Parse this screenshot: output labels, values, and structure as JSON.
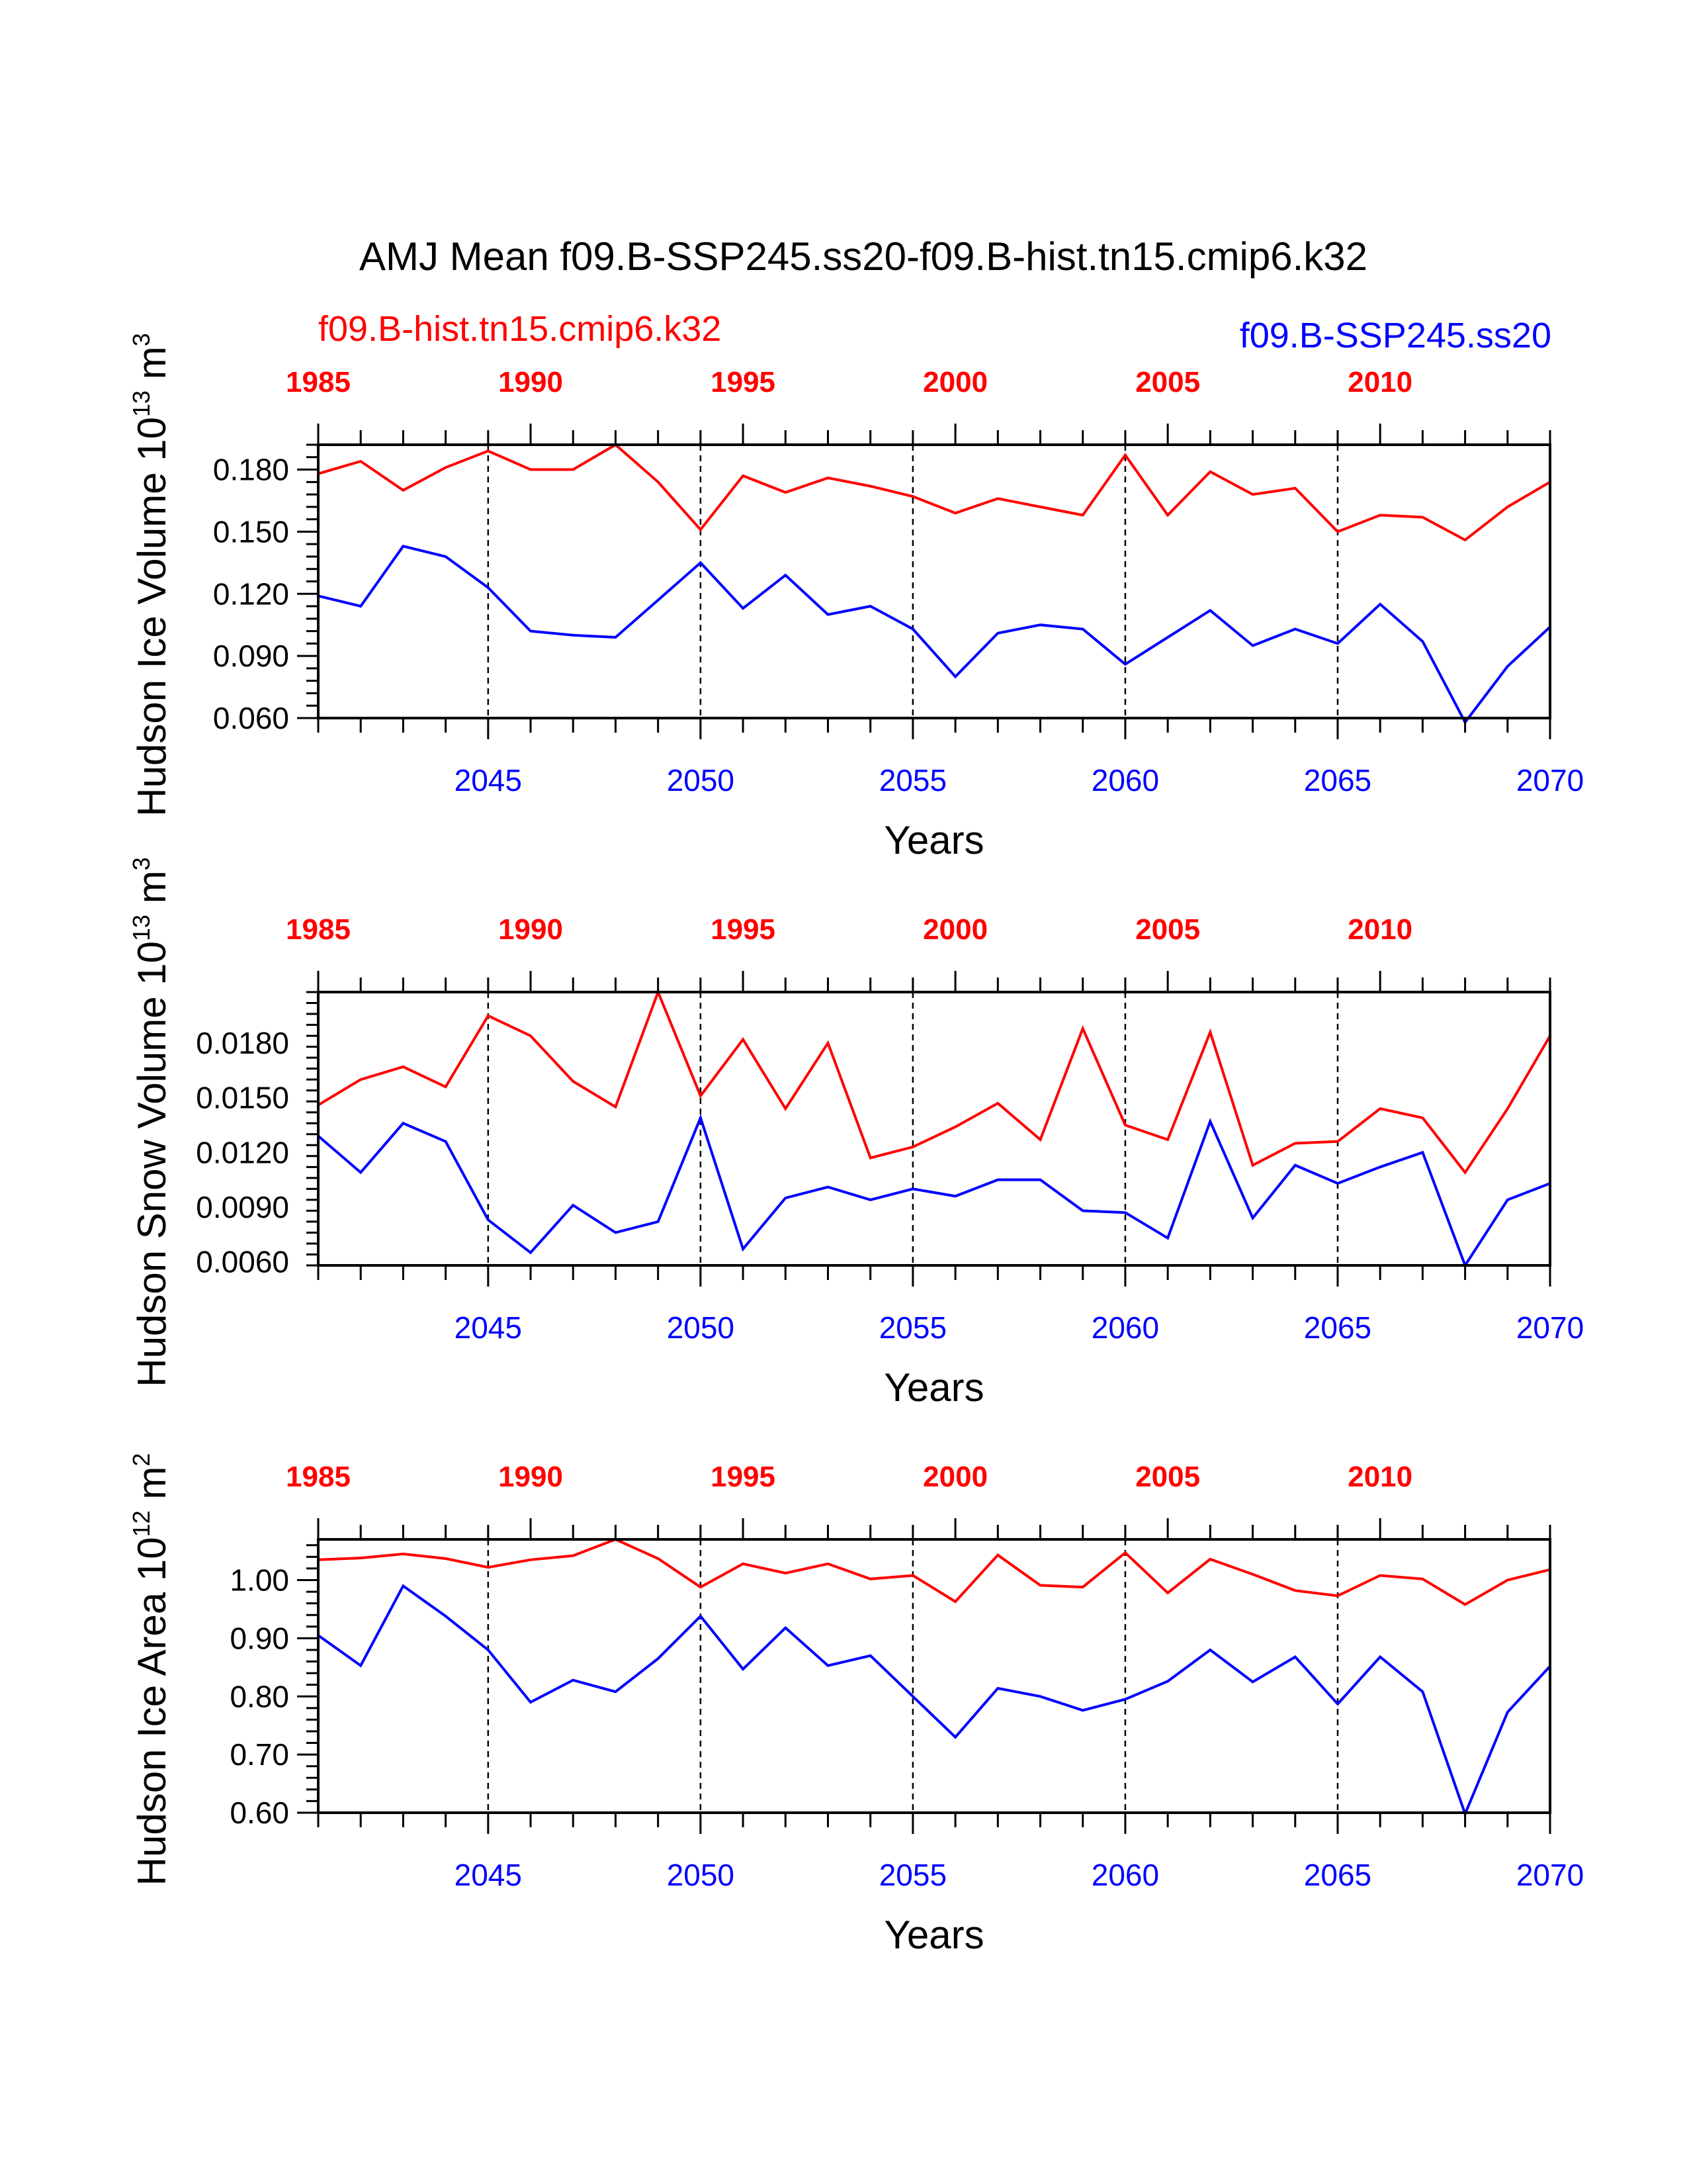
{
  "title": "AMJ Mean f09.B-SSP245.ss20-f09.B-hist.tn15.cmip6.k32",
  "colors": {
    "hist": "#ff0000",
    "ssp": "#0000ff",
    "axis": "#000000"
  },
  "legend": {
    "hist": "f09.B-hist.tn15.cmip6.k32",
    "ssp": "f09.B-SSP245.ss20"
  },
  "chart_data": [
    {
      "type": "line",
      "ylabel": {
        "main": "Hudson Ice Volume 10",
        "exp": "13",
        "unit": " m",
        "unit_exp": "3"
      },
      "xlabel": "Years",
      "xlim": [
        2041,
        2070
      ],
      "ylim": [
        0.06,
        0.192
      ],
      "yticks": [
        "0.060",
        "0.090",
        "0.120",
        "0.150",
        "0.180"
      ],
      "x_bottom": [
        2041,
        2042,
        2043,
        2044,
        2045,
        2046,
        2047,
        2048,
        2049,
        2050,
        2051,
        2052,
        2053,
        2054,
        2055,
        2056,
        2057,
        2058,
        2059,
        2060,
        2061,
        2062,
        2063,
        2064,
        2065,
        2066,
        2067,
        2068,
        2069,
        2070
      ],
      "bottom_ticks": [
        "2045",
        "2050",
        "2055",
        "2060",
        "2065",
        "2070"
      ],
      "top_ticks": [
        "1985",
        "1990",
        "1995",
        "2000",
        "2005",
        "2010"
      ],
      "series": [
        {
          "name": "f09.B-hist.tn15.cmip6.k32",
          "color": "#ff0000",
          "values": [
            0.178,
            0.184,
            0.17,
            0.181,
            0.189,
            0.18,
            0.18,
            0.192,
            0.174,
            0.151,
            0.177,
            0.169,
            0.176,
            0.172,
            0.167,
            0.159,
            0.166,
            0.162,
            0.158,
            0.187,
            0.158,
            0.179,
            0.168,
            0.171,
            0.15,
            0.158,
            0.157,
            0.146,
            0.162,
            0.174
          ]
        },
        {
          "name": "f09.B-SSP245.ss20",
          "color": "#0000ff",
          "values": [
            0.119,
            0.114,
            0.143,
            0.138,
            0.123,
            0.102,
            0.1,
            0.099,
            0.117,
            0.135,
            0.113,
            0.129,
            0.11,
            0.114,
            0.103,
            0.08,
            0.101,
            0.105,
            0.103,
            0.086,
            0.099,
            0.112,
            0.095,
            0.103,
            0.096,
            0.115,
            0.097,
            0.058,
            0.085,
            0.104
          ]
        }
      ]
    },
    {
      "type": "line",
      "ylabel": {
        "main": "Hudson Snow Volume 10",
        "exp": "13",
        "unit": " m",
        "unit_exp": "3"
      },
      "xlabel": "Years",
      "xlim": [
        2041,
        2070
      ],
      "ylim": [
        0.0058,
        0.0208
      ],
      "yticks": [
        "0.0060",
        "0.0090",
        "0.0120",
        "0.0150",
        "0.0180"
      ],
      "x_bottom": [
        2041,
        2042,
        2043,
        2044,
        2045,
        2046,
        2047,
        2048,
        2049,
        2050,
        2051,
        2052,
        2053,
        2054,
        2055,
        2056,
        2057,
        2058,
        2059,
        2060,
        2061,
        2062,
        2063,
        2064,
        2065,
        2066,
        2067,
        2068,
        2069,
        2070
      ],
      "bottom_ticks": [
        "2045",
        "2050",
        "2055",
        "2060",
        "2065",
        "2070"
      ],
      "top_ticks": [
        "1985",
        "1990",
        "1995",
        "2000",
        "2005",
        "2010"
      ],
      "series": [
        {
          "name": "f09.B-hist.tn15.cmip6.k32",
          "color": "#ff0000",
          "values": [
            0.0146,
            0.016,
            0.0167,
            0.0156,
            0.0195,
            0.0184,
            0.0159,
            0.0145,
            0.0208,
            0.0151,
            0.0182,
            0.0144,
            0.018,
            0.0117,
            0.0123,
            0.0134,
            0.0147,
            0.0127,
            0.0188,
            0.0135,
            0.0127,
            0.0186,
            0.0113,
            0.0125,
            0.0126,
            0.0144,
            0.0139,
            0.0109,
            0.0144,
            0.0184
          ]
        },
        {
          "name": "f09.B-SSP245.ss20",
          "color": "#0000ff",
          "values": [
            0.0129,
            0.0109,
            0.0136,
            0.0126,
            0.0083,
            0.0065,
            0.0091,
            0.0076,
            0.0082,
            0.0139,
            0.0067,
            0.0095,
            0.0101,
            0.0094,
            0.01,
            0.0096,
            0.0105,
            0.0105,
            0.0088,
            0.0087,
            0.0073,
            0.0137,
            0.0084,
            0.0113,
            0.0103,
            0.0112,
            0.012,
            0.0058,
            0.0094,
            0.0103
          ]
        }
      ]
    },
    {
      "type": "line",
      "ylabel": {
        "main": "Hudson Ice Area 10",
        "exp": "12",
        "unit": " m",
        "unit_exp": "2"
      },
      "xlabel": "Years",
      "xlim": [
        2041,
        2070
      ],
      "ylim": [
        0.6,
        1.07
      ],
      "yticks": [
        "0.60",
        "0.70",
        "0.80",
        "0.90",
        "1.00"
      ],
      "x_bottom": [
        2041,
        2042,
        2043,
        2044,
        2045,
        2046,
        2047,
        2048,
        2049,
        2050,
        2051,
        2052,
        2053,
        2054,
        2055,
        2056,
        2057,
        2058,
        2059,
        2060,
        2061,
        2062,
        2063,
        2064,
        2065,
        2066,
        2067,
        2068,
        2069,
        2070
      ],
      "bottom_ticks": [
        "2045",
        "2050",
        "2055",
        "2060",
        "2065",
        "2070"
      ],
      "top_ticks": [
        "1985",
        "1990",
        "1995",
        "2000",
        "2005",
        "2010"
      ],
      "series": [
        {
          "name": "f09.B-hist.tn15.cmip6.k32",
          "color": "#ff0000",
          "values": [
            1.035,
            1.038,
            1.045,
            1.037,
            1.022,
            1.035,
            1.042,
            1.07,
            1.037,
            0.988,
            1.028,
            1.012,
            1.028,
            1.002,
            1.008,
            0.963,
            1.043,
            0.991,
            0.988,
            1.047,
            0.978,
            1.036,
            1.01,
            0.982,
            0.973,
            1.008,
            1.002,
            0.958,
            1.0,
            1.018
          ]
        },
        {
          "name": "f09.B-SSP245.ss20",
          "color": "#0000ff",
          "values": [
            0.905,
            0.853,
            0.99,
            0.938,
            0.88,
            0.79,
            0.828,
            0.808,
            0.865,
            0.938,
            0.847,
            0.918,
            0.853,
            0.87,
            0.8,
            0.73,
            0.814,
            0.8,
            0.776,
            0.795,
            0.826,
            0.88,
            0.825,
            0.868,
            0.787,
            0.868,
            0.808,
            0.598,
            0.773,
            0.852
          ]
        }
      ]
    }
  ]
}
